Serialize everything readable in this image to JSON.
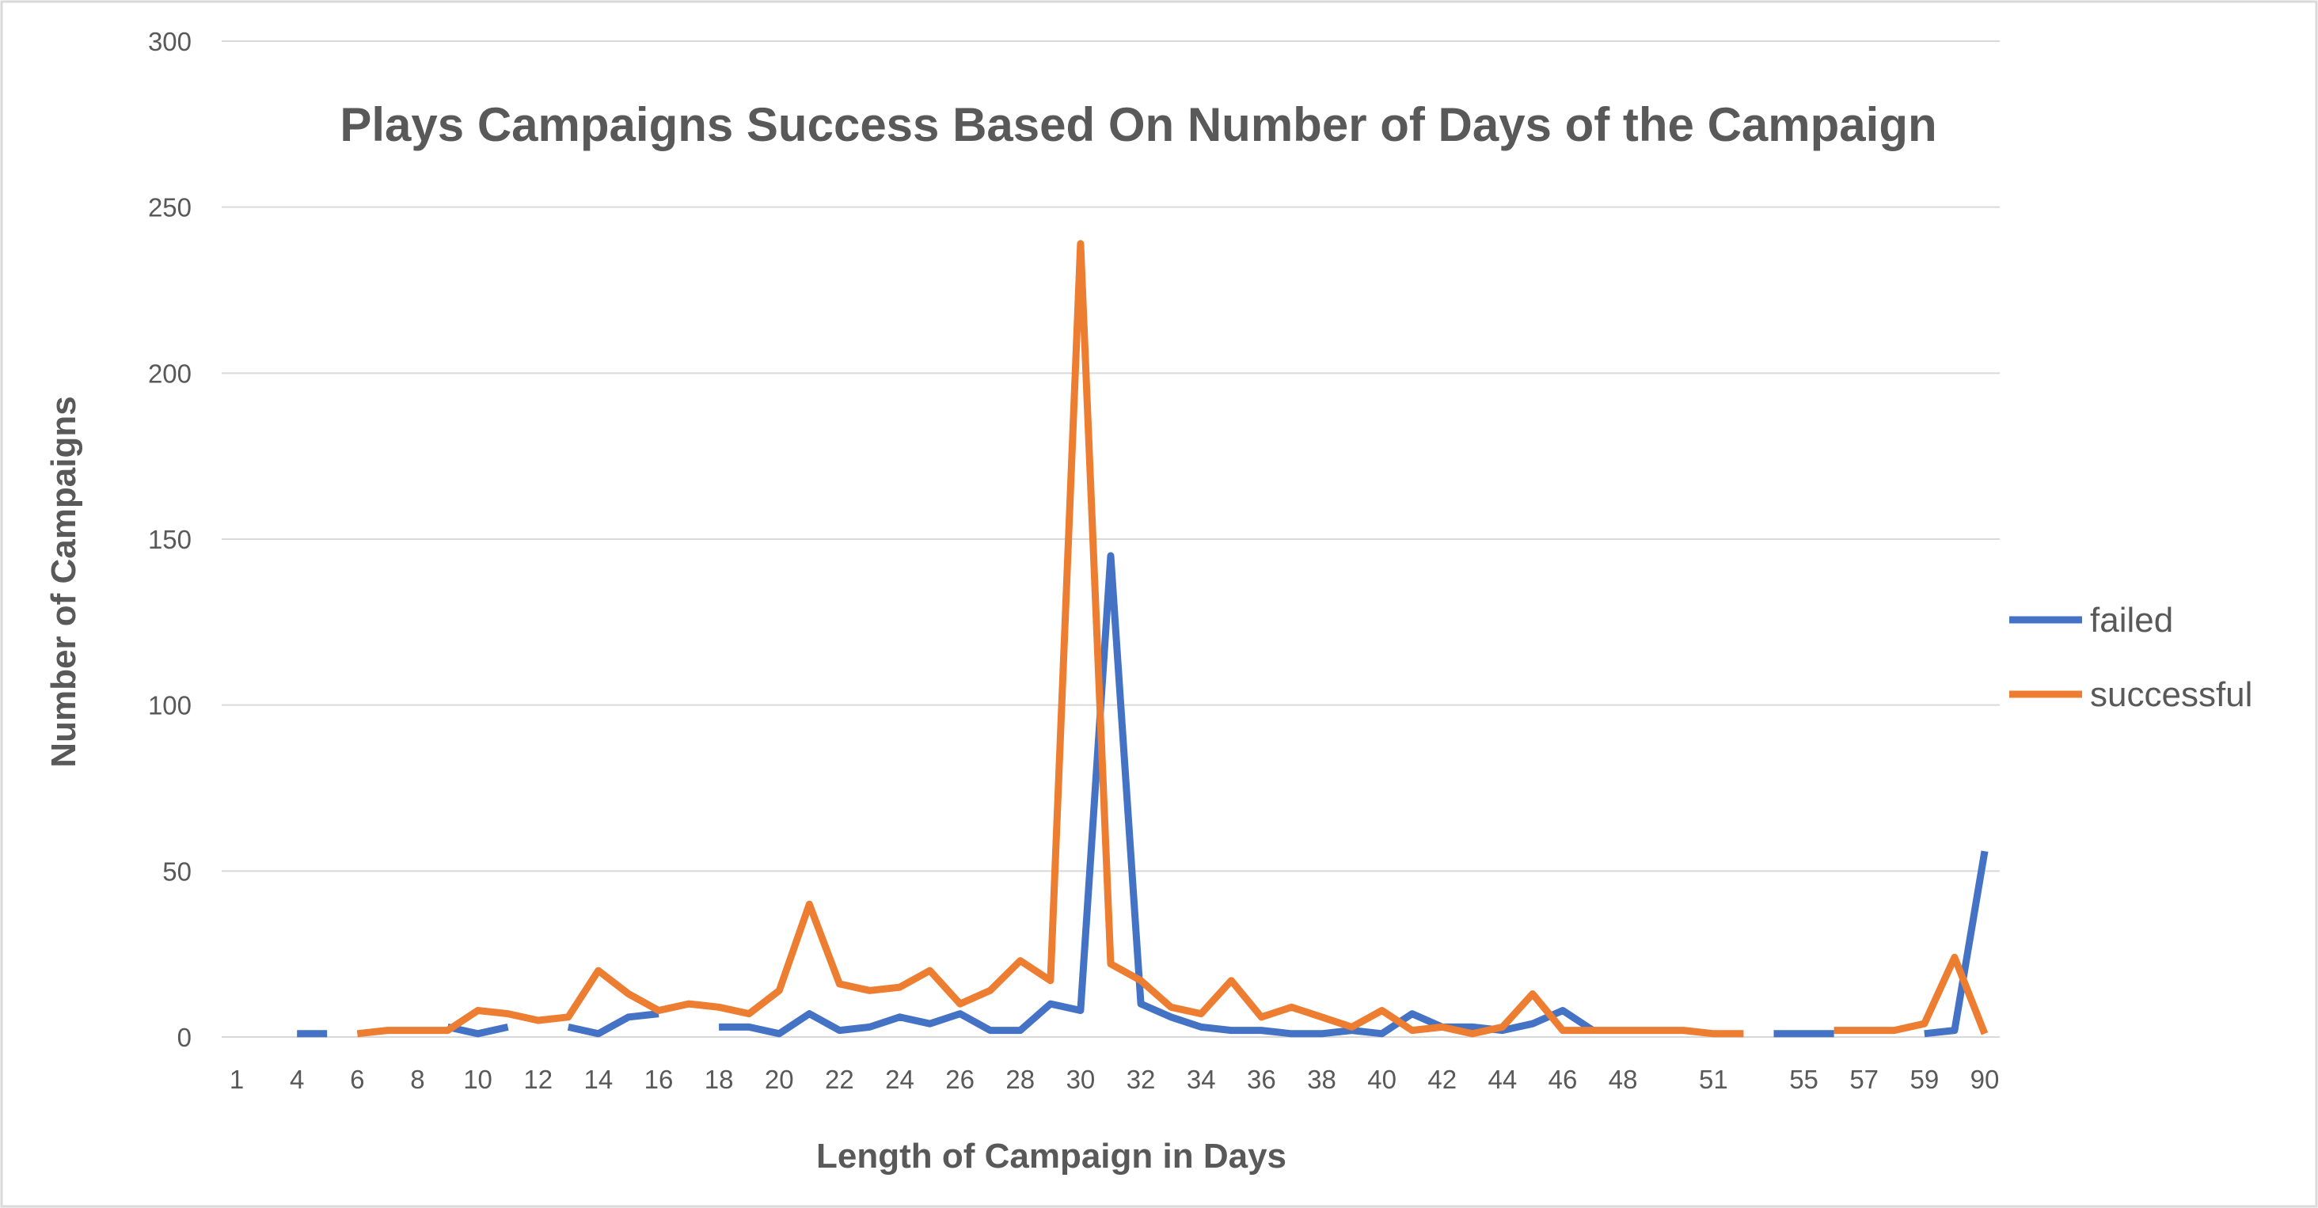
{
  "chart_data": {
    "type": "line",
    "title": "Plays Campaigns Success Based On Number of Days of the Campaign",
    "xlabel": "Length of Campaign in Days",
    "ylabel": "Number of Campaigns",
    "ylim": [
      0,
      300
    ],
    "yticks": [
      "0",
      "50",
      "100",
      "150",
      "200",
      "250",
      "300"
    ],
    "grid": true,
    "legend": "right",
    "categories": [
      "1",
      "3",
      "4",
      "5",
      "6",
      "7",
      "8",
      "9",
      "10",
      "11",
      "12",
      "13",
      "14",
      "15",
      "16",
      "17",
      "18",
      "19",
      "20",
      "21",
      "22",
      "23",
      "24",
      "25",
      "26",
      "27",
      "28",
      "29",
      "30",
      "31",
      "32",
      "33",
      "34",
      "35",
      "36",
      "37",
      "38",
      "39",
      "40",
      "41",
      "42",
      "43",
      "44",
      "45",
      "46",
      "47",
      "48",
      "49",
      "50",
      "51",
      "52",
      "54",
      "55",
      "56",
      "57",
      "58",
      "59",
      "60",
      "90"
    ],
    "xtick_labels": [
      "1",
      "4",
      "6",
      "8",
      "10",
      "12",
      "14",
      "16",
      "18",
      "20",
      "22",
      "24",
      "26",
      "28",
      "30",
      "32",
      "34",
      "36",
      "38",
      "40",
      "42",
      "44",
      "46",
      "48",
      "51",
      "55",
      "57",
      "59",
      "90"
    ],
    "series": [
      {
        "name": "failed",
        "color": "#4472C4",
        "values": [
          null,
          null,
          1,
          1,
          null,
          null,
          null,
          3,
          1,
          3,
          null,
          3,
          1,
          6,
          7,
          null,
          3,
          3,
          1,
          7,
          2,
          3,
          6,
          4,
          7,
          2,
          2,
          10,
          8,
          145,
          10,
          6,
          3,
          2,
          2,
          1,
          1,
          2,
          1,
          7,
          3,
          3,
          2,
          4,
          8,
          2,
          null,
          null,
          null,
          null,
          null,
          1,
          1,
          1,
          null,
          null,
          1,
          2,
          56
        ]
      },
      {
        "name": "successful",
        "color": "#ED7D31",
        "values": [
          null,
          null,
          null,
          null,
          1,
          2,
          2,
          2,
          8,
          7,
          5,
          6,
          20,
          13,
          8,
          10,
          9,
          7,
          14,
          40,
          16,
          14,
          15,
          20,
          10,
          14,
          23,
          17,
          239,
          22,
          17,
          9,
          7,
          17,
          6,
          9,
          6,
          3,
          8,
          2,
          3,
          1,
          3,
          13,
          2,
          2,
          2,
          2,
          2,
          1,
          1,
          null,
          null,
          2,
          2,
          2,
          4,
          24,
          1
        ]
      }
    ]
  }
}
